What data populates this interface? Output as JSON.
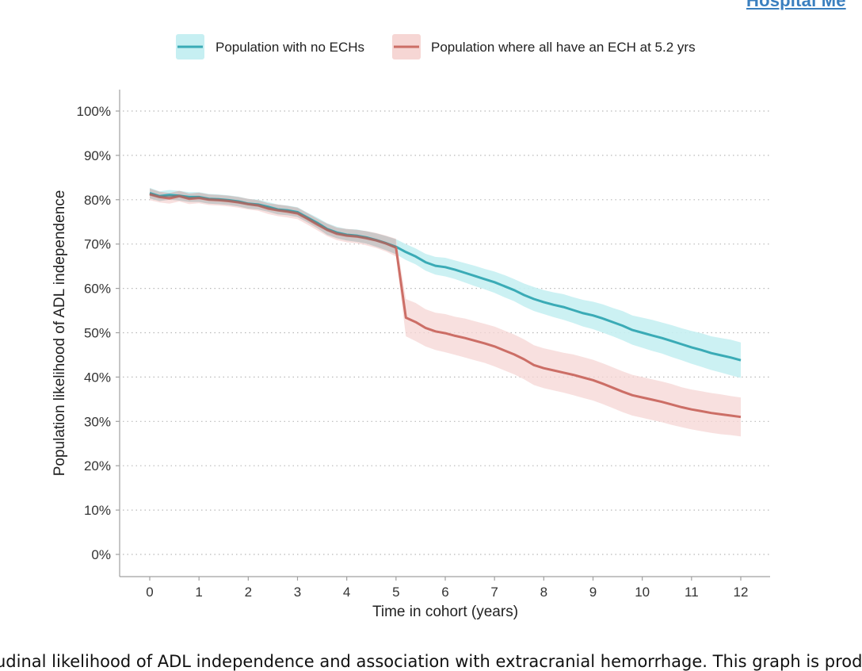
{
  "header": {
    "journal_name": "Hospital Me"
  },
  "caption": {
    "text": "udinal likelihood of ADL independence and association with extracranial hemorrhage. This graph is prod"
  },
  "colors": {
    "series_no_ech": "#3aabb6",
    "series_no_ech_band": "#c6eff2",
    "series_ech": "#cc6e66",
    "series_ech_band": "#f6d6d4",
    "overlap_band": "#c7c4c4",
    "grid": "#b9b9b9",
    "axis": "#a0a0a0",
    "text": "#333333"
  },
  "chart_data": {
    "type": "line",
    "title": "",
    "xlabel": "Time in cohort (years)",
    "ylabel": "Population likelihood of ADL independence",
    "xlim": [
      0,
      12
    ],
    "ylim": [
      0,
      100
    ],
    "x_ticks": [
      "0",
      "1",
      "2",
      "3",
      "4",
      "5",
      "6",
      "7",
      "8",
      "9",
      "10",
      "11",
      "12"
    ],
    "y_ticks": [
      "0%",
      "10%",
      "20%",
      "30%",
      "40%",
      "50%",
      "60%",
      "70%",
      "80%",
      "90%",
      "100%"
    ],
    "grid": "horizontal-dotted",
    "legend_position": "top",
    "series": [
      {
        "name": "Population with no ECHs",
        "x": [
          0,
          0.2,
          0.4,
          0.6,
          0.8,
          1.0,
          1.2,
          1.4,
          1.6,
          1.8,
          2.0,
          2.2,
          2.4,
          2.6,
          2.8,
          3.0,
          3.2,
          3.4,
          3.6,
          3.8,
          4.0,
          4.2,
          4.4,
          4.6,
          4.8,
          5.0,
          5.2,
          5.4,
          5.6,
          5.8,
          6.0,
          6.2,
          6.4,
          6.6,
          6.8,
          7.0,
          7.2,
          7.4,
          7.6,
          7.8,
          8.0,
          8.2,
          8.4,
          8.6,
          8.8,
          9.0,
          9.2,
          9.4,
          9.6,
          9.8,
          10.0,
          10.2,
          10.4,
          10.6,
          10.8,
          11.0,
          11.2,
          11.4,
          11.6,
          11.8,
          12.0
        ],
        "values": [
          81.5,
          80.8,
          81.1,
          80.9,
          80.6,
          80.6,
          80.2,
          80.1,
          79.9,
          79.6,
          79.1,
          78.9,
          78.4,
          77.8,
          77.6,
          77.2,
          76.0,
          74.8,
          73.4,
          72.6,
          72.1,
          71.9,
          71.5,
          70.9,
          70.2,
          69.4,
          68.2,
          67.2,
          65.9,
          65.1,
          64.8,
          64.2,
          63.5,
          62.8,
          62.1,
          61.4,
          60.5,
          59.6,
          58.5,
          57.6,
          56.9,
          56.3,
          55.8,
          55.1,
          54.4,
          53.9,
          53.2,
          52.4,
          51.6,
          50.6,
          50.0,
          49.4,
          48.8,
          48.1,
          47.4,
          46.7,
          46.1,
          45.4,
          44.9,
          44.4,
          43.8
        ],
        "ci_lower": [
          80.3,
          79.7,
          80.0,
          79.8,
          79.5,
          79.5,
          79.1,
          79.0,
          78.8,
          78.5,
          78.0,
          77.8,
          77.3,
          76.7,
          76.5,
          76.1,
          74.9,
          73.6,
          72.1,
          71.3,
          70.8,
          70.5,
          70.1,
          69.4,
          68.6,
          67.7,
          66.4,
          65.4,
          64.0,
          63.1,
          62.7,
          62.1,
          61.3,
          60.5,
          59.8,
          59.0,
          58.0,
          57.1,
          55.9,
          54.9,
          54.2,
          53.5,
          52.9,
          52.2,
          51.4,
          50.8,
          50.0,
          49.2,
          48.3,
          47.3,
          46.6,
          45.9,
          45.3,
          44.5,
          43.8,
          43.0,
          42.3,
          41.6,
          41.0,
          40.4,
          39.8
        ],
        "ci_upper": [
          82.7,
          81.9,
          82.2,
          82.0,
          81.7,
          81.7,
          81.3,
          81.2,
          81.0,
          80.7,
          80.2,
          80.0,
          79.5,
          78.9,
          78.7,
          78.3,
          77.1,
          76.0,
          74.7,
          73.9,
          73.4,
          73.3,
          72.9,
          72.4,
          71.8,
          71.1,
          70.0,
          69.0,
          67.8,
          67.1,
          66.9,
          66.3,
          65.7,
          65.1,
          64.4,
          63.8,
          63.0,
          62.1,
          61.1,
          60.3,
          59.6,
          59.1,
          58.7,
          58.0,
          57.4,
          57.0,
          56.4,
          55.6,
          54.9,
          53.9,
          53.4,
          52.9,
          52.3,
          51.7,
          51.0,
          50.4,
          49.9,
          49.2,
          48.8,
          48.4,
          47.8
        ]
      },
      {
        "name": "Population where all have an ECH at 5.2 yrs",
        "x": [
          0,
          0.2,
          0.4,
          0.6,
          0.8,
          1.0,
          1.2,
          1.4,
          1.6,
          1.8,
          2.0,
          2.2,
          2.4,
          2.6,
          2.8,
          3.0,
          3.2,
          3.4,
          3.6,
          3.8,
          4.0,
          4.2,
          4.4,
          4.6,
          4.8,
          5.0,
          5.2,
          5.4,
          5.6,
          5.8,
          6.0,
          6.2,
          6.4,
          6.6,
          6.8,
          7.0,
          7.2,
          7.4,
          7.6,
          7.8,
          8.0,
          8.2,
          8.4,
          8.6,
          8.8,
          9.0,
          9.2,
          9.4,
          9.6,
          9.8,
          10.0,
          10.2,
          10.4,
          10.6,
          10.8,
          11.0,
          11.2,
          11.4,
          11.6,
          11.8,
          12.0
        ],
        "values": [
          81.2,
          80.6,
          80.3,
          80.8,
          80.2,
          80.4,
          80.0,
          79.9,
          79.7,
          79.4,
          79.0,
          78.7,
          78.0,
          77.6,
          77.3,
          76.9,
          75.7,
          74.4,
          73.2,
          72.3,
          71.9,
          71.7,
          71.3,
          70.8,
          70.1,
          69.2,
          53.4,
          52.4,
          51.1,
          50.3,
          49.9,
          49.3,
          48.8,
          48.2,
          47.6,
          46.9,
          46.0,
          45.1,
          44.0,
          42.7,
          42.0,
          41.5,
          41.0,
          40.5,
          39.9,
          39.3,
          38.5,
          37.6,
          36.7,
          35.9,
          35.4,
          34.9,
          34.4,
          33.8,
          33.2,
          32.7,
          32.3,
          31.9,
          31.6,
          31.3,
          31.0
        ],
        "ci_lower": [
          79.9,
          79.4,
          79.1,
          79.6,
          79.0,
          79.2,
          78.8,
          78.7,
          78.5,
          78.2,
          77.8,
          77.5,
          76.8,
          76.3,
          76.0,
          75.6,
          74.4,
          73.1,
          71.8,
          70.9,
          70.4,
          70.2,
          69.7,
          69.1,
          68.3,
          67.2,
          49.2,
          48.1,
          46.9,
          46.1,
          45.6,
          45.0,
          44.4,
          43.8,
          43.2,
          42.4,
          41.5,
          40.6,
          39.5,
          38.2,
          37.5,
          37.0,
          36.5,
          35.9,
          35.3,
          34.7,
          33.9,
          33.0,
          32.1,
          31.3,
          30.8,
          30.3,
          29.8,
          29.2,
          28.7,
          28.2,
          27.8,
          27.4,
          27.1,
          26.9,
          26.6
        ],
        "ci_upper": [
          82.5,
          81.8,
          81.5,
          82.0,
          81.4,
          81.6,
          81.2,
          81.1,
          80.9,
          80.6,
          80.2,
          79.9,
          79.2,
          78.9,
          78.6,
          78.2,
          77.0,
          75.7,
          74.6,
          73.7,
          73.4,
          73.2,
          72.9,
          72.5,
          71.9,
          71.2,
          57.6,
          56.7,
          55.3,
          54.5,
          54.2,
          53.6,
          53.2,
          52.6,
          52.0,
          51.4,
          50.5,
          49.6,
          48.5,
          47.2,
          46.5,
          46.0,
          45.5,
          45.1,
          44.5,
          43.9,
          43.1,
          42.2,
          41.3,
          40.5,
          40.0,
          39.5,
          39.0,
          38.4,
          37.7,
          37.2,
          36.8,
          36.4,
          36.1,
          35.7,
          35.4
        ]
      }
    ]
  }
}
